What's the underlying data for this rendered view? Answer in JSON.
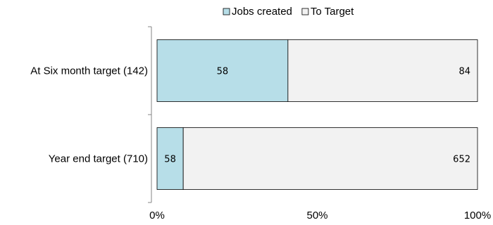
{
  "chart_data": {
    "type": "bar",
    "orientation": "horizontal",
    "stacked": "percent",
    "categories": [
      "At Six month target (142)",
      "Year end target (710)"
    ],
    "series": [
      {
        "name": "Jobs created",
        "values": [
          58,
          58
        ],
        "color": "#b7dee8"
      },
      {
        "name": "To Target",
        "values": [
          84,
          652
        ],
        "color": "#f2f2f2"
      }
    ],
    "xticks": [
      "0%",
      "50%",
      "100%"
    ],
    "xlim": [
      0,
      100
    ],
    "legend_position": "top",
    "grid": false
  }
}
